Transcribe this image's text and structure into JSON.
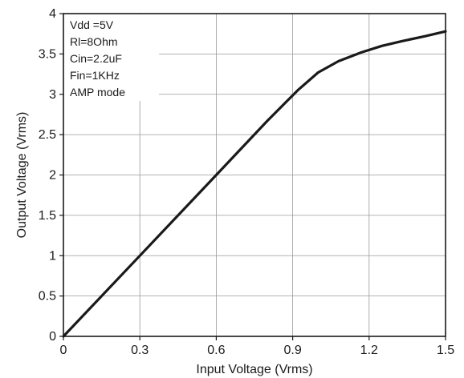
{
  "chart_data": {
    "type": "line",
    "title": "",
    "xlabel": "Input Voltage (Vrms)",
    "ylabel": "Output Voltage (Vrms)",
    "xlim": [
      0,
      1.5
    ],
    "ylim": [
      0,
      4
    ],
    "x_ticks": [
      0,
      0.3,
      0.6,
      0.9,
      1.2,
      1.5
    ],
    "x_tick_labels": [
      "0",
      "0.3",
      "0.6",
      "0.9",
      "1.2",
      "1.5"
    ],
    "y_ticks": [
      0,
      0.5,
      1,
      1.5,
      2,
      2.5,
      3,
      3.5,
      4
    ],
    "y_tick_labels": [
      "0",
      "0.5",
      "1",
      "1.5",
      "2",
      "2.5",
      "3",
      "3.5",
      "4"
    ],
    "grid": true,
    "annotations": [
      "Vdd =5V",
      "Rl=8Ohm",
      "Cin=2.2uF",
      "Fin=1KHz",
      "AMP mode"
    ],
    "series": [
      {
        "color": "#1a1a1a",
        "x": [
          0,
          0.3,
          0.6,
          0.8,
          0.92,
          1.0,
          1.08,
          1.17,
          1.25,
          1.33,
          1.42,
          1.5
        ],
        "y": [
          0,
          1.0,
          2.0,
          2.67,
          3.05,
          3.27,
          3.41,
          3.52,
          3.6,
          3.66,
          3.72,
          3.78
        ]
      }
    ]
  }
}
